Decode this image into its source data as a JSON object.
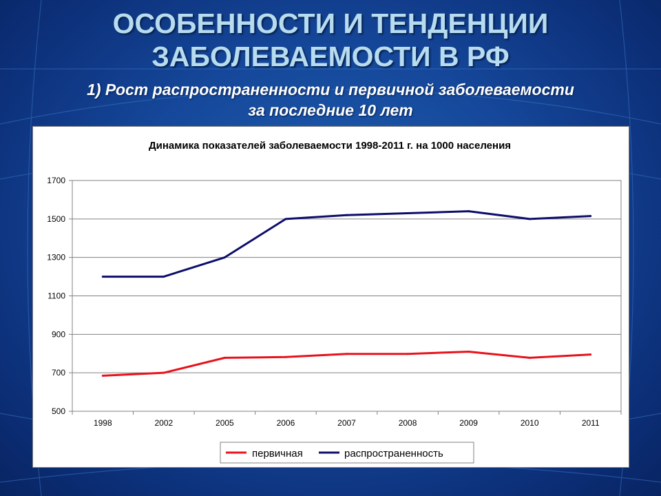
{
  "slide": {
    "title_line1": "ОСОБЕННОСТИ И ТЕНДЕНЦИИ",
    "title_line2": "ЗАБОЛЕВАЕМОСТИ В РФ",
    "subtitle_line1": "1) Рост распространенности и первичной заболеваемости",
    "subtitle_line2": "за последние 10 лет"
  },
  "chart_data": {
    "type": "line",
    "title": "Динамика показателей заболеваемости 1998-2011 г. на 1000 населения",
    "categories": [
      "1998",
      "2002",
      "2005",
      "2006",
      "2007",
      "2008",
      "2009",
      "2010",
      "2011"
    ],
    "ylim": [
      500,
      1700
    ],
    "yticks": [
      "500",
      "700",
      "900",
      "1100",
      "1300",
      "1500",
      "1700"
    ],
    "grid": true,
    "legend_position": "bottom",
    "series": [
      {
        "name": "первичная",
        "color": "#e8121b",
        "values": [
          685,
          700,
          778,
          782,
          798,
          798,
          810,
          778,
          795
        ]
      },
      {
        "name": "распространенность",
        "color": "#0d0d6b",
        "values": [
          1200,
          1200,
          1300,
          1500,
          1520,
          1530,
          1540,
          1500,
          1515
        ]
      }
    ]
  }
}
